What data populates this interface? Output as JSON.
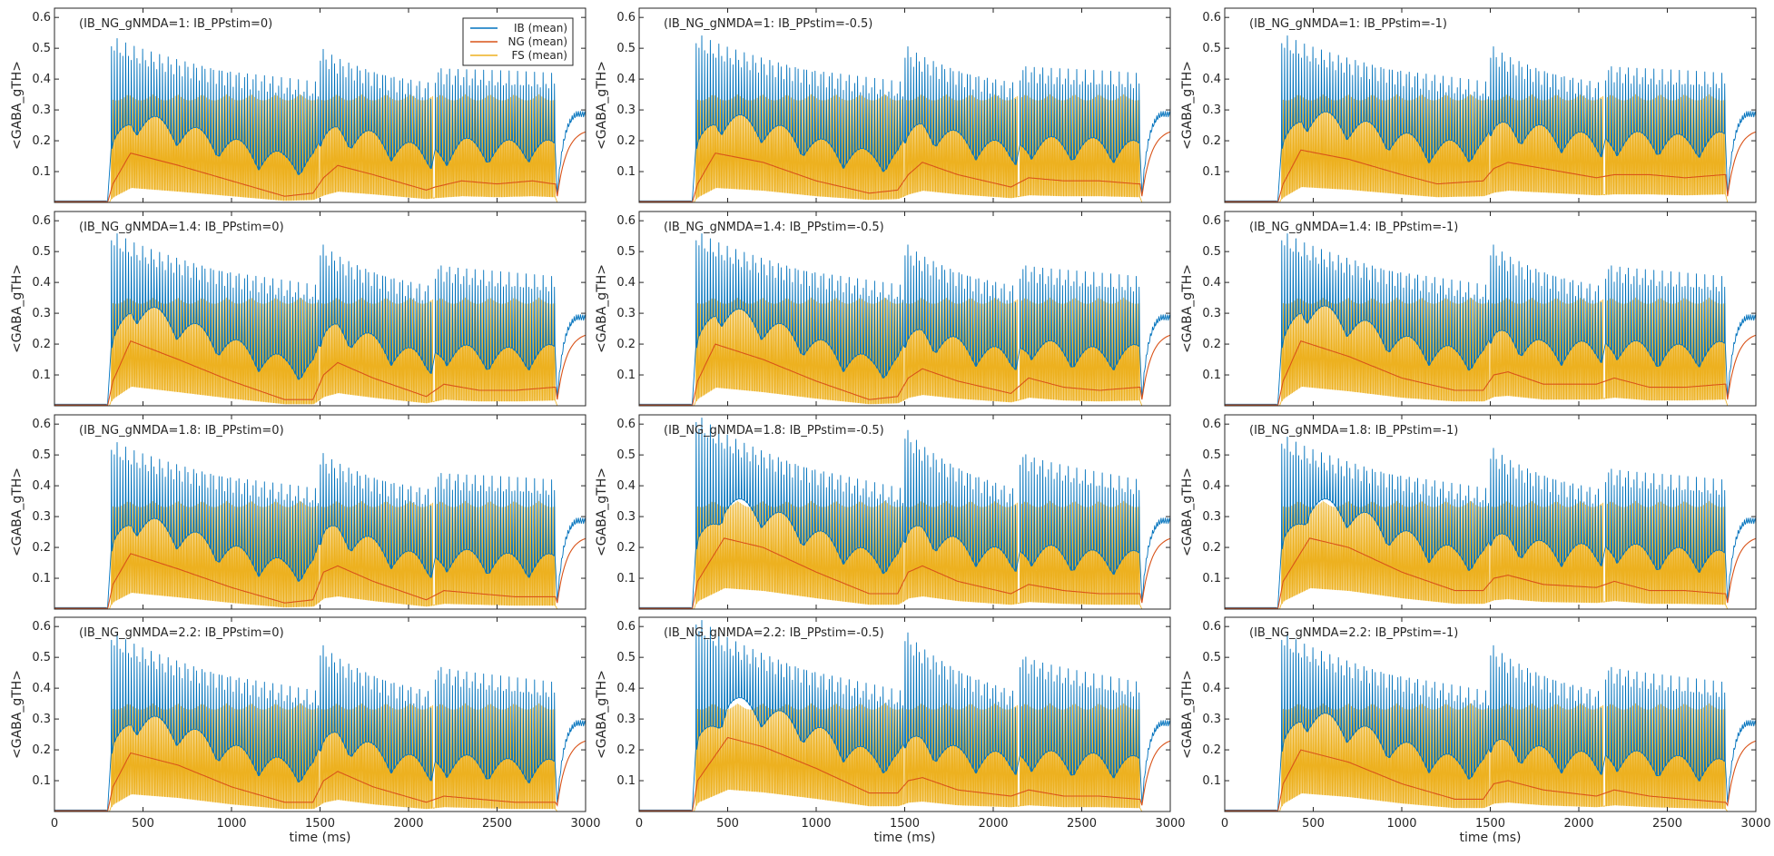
{
  "chart_data": {
    "type": "line",
    "layout": "4x3 grid of subplots",
    "ylabel": "<GABA_gTH>",
    "xlabel": "time (ms)",
    "xlim": [
      0,
      3000
    ],
    "ylim": [
      0,
      0.63
    ],
    "xticks": [
      0,
      500,
      1000,
      1500,
      2000,
      2500,
      3000
    ],
    "yticks": [
      0.1,
      0.2,
      0.3,
      0.4,
      0.5,
      0.6
    ],
    "grid": false,
    "legend": {
      "placement": "top-right of first subplot",
      "entries": [
        {
          "name": "IB (mean)",
          "color": "#0072BD"
        },
        {
          "name": "NG (mean)",
          "color": "#D95319"
        },
        {
          "name": "FS (mean)",
          "color": "#EDB120"
        }
      ]
    },
    "burst_periods_ms": [
      [
        320,
        1490
      ],
      [
        1500,
        2140
      ],
      [
        2150,
        2830
      ]
    ],
    "fs_spike_peak": 0.35,
    "end_rise": {
      "start_ms": 2840,
      "ib_plateau": 0.3,
      "ng_plateau": 0.24
    },
    "panels": [
      {
        "title": "(IB_NG_gNMDA=1: IB_PPstim=0)",
        "ib_peak": 0.52,
        "ng_points": [
          [
            300,
            0
          ],
          [
            330,
            0.06
          ],
          [
            430,
            0.16
          ],
          [
            700,
            0.12
          ],
          [
            1000,
            0.07
          ],
          [
            1300,
            0.02
          ],
          [
            1460,
            0.03
          ],
          [
            1520,
            0.08
          ],
          [
            1600,
            0.12
          ],
          [
            1800,
            0.09
          ],
          [
            2100,
            0.04
          ],
          [
            2150,
            0.05
          ],
          [
            2300,
            0.07
          ],
          [
            2500,
            0.06
          ],
          [
            2700,
            0.07
          ],
          [
            2820,
            0.06
          ]
        ]
      },
      {
        "title": "(IB_NG_gNMDA=1: IB_PPstim=-0.5)",
        "ib_peak": 0.53,
        "ng_points": [
          [
            300,
            0
          ],
          [
            330,
            0.06
          ],
          [
            430,
            0.16
          ],
          [
            700,
            0.13
          ],
          [
            1000,
            0.07
          ],
          [
            1300,
            0.03
          ],
          [
            1460,
            0.04
          ],
          [
            1520,
            0.09
          ],
          [
            1600,
            0.13
          ],
          [
            1800,
            0.09
          ],
          [
            2100,
            0.05
          ],
          [
            2200,
            0.08
          ],
          [
            2400,
            0.07
          ],
          [
            2600,
            0.07
          ],
          [
            2820,
            0.06
          ]
        ]
      },
      {
        "title": "(IB_NG_gNMDA=1: IB_PPstim=-1)",
        "ib_peak": 0.53,
        "ng_points": [
          [
            300,
            0
          ],
          [
            330,
            0.06
          ],
          [
            430,
            0.17
          ],
          [
            700,
            0.14
          ],
          [
            1000,
            0.09
          ],
          [
            1200,
            0.06
          ],
          [
            1460,
            0.07
          ],
          [
            1520,
            0.11
          ],
          [
            1600,
            0.13
          ],
          [
            1800,
            0.11
          ],
          [
            2100,
            0.08
          ],
          [
            2200,
            0.09
          ],
          [
            2400,
            0.09
          ],
          [
            2600,
            0.08
          ],
          [
            2820,
            0.09
          ]
        ]
      },
      {
        "title": "(IB_NG_gNMDA=1.4: IB_PPstim=0)",
        "ib_peak": 0.55,
        "ng_points": [
          [
            300,
            0
          ],
          [
            330,
            0.08
          ],
          [
            430,
            0.21
          ],
          [
            700,
            0.15
          ],
          [
            1000,
            0.08
          ],
          [
            1300,
            0.02
          ],
          [
            1460,
            0.02
          ],
          [
            1520,
            0.1
          ],
          [
            1600,
            0.14
          ],
          [
            1800,
            0.09
          ],
          [
            2100,
            0.03
          ],
          [
            2200,
            0.07
          ],
          [
            2400,
            0.05
          ],
          [
            2600,
            0.05
          ],
          [
            2820,
            0.06
          ]
        ]
      },
      {
        "title": "(IB_NG_gNMDA=1.4: IB_PPstim=-0.5)",
        "ib_peak": 0.55,
        "ng_points": [
          [
            300,
            0
          ],
          [
            330,
            0.08
          ],
          [
            430,
            0.2
          ],
          [
            700,
            0.15
          ],
          [
            1000,
            0.08
          ],
          [
            1300,
            0.02
          ],
          [
            1460,
            0.03
          ],
          [
            1520,
            0.09
          ],
          [
            1600,
            0.12
          ],
          [
            1800,
            0.08
          ],
          [
            2100,
            0.04
          ],
          [
            2200,
            0.09
          ],
          [
            2400,
            0.06
          ],
          [
            2600,
            0.05
          ],
          [
            2820,
            0.06
          ]
        ]
      },
      {
        "title": "(IB_NG_gNMDA=1.4: IB_PPstim=-1)",
        "ib_peak": 0.55,
        "ng_points": [
          [
            300,
            0
          ],
          [
            330,
            0.08
          ],
          [
            430,
            0.21
          ],
          [
            700,
            0.16
          ],
          [
            1000,
            0.09
          ],
          [
            1300,
            0.05
          ],
          [
            1460,
            0.05
          ],
          [
            1520,
            0.1
          ],
          [
            1600,
            0.11
          ],
          [
            1800,
            0.07
          ],
          [
            2100,
            0.07
          ],
          [
            2200,
            0.09
          ],
          [
            2400,
            0.06
          ],
          [
            2600,
            0.06
          ],
          [
            2820,
            0.07
          ]
        ]
      },
      {
        "title": "(IB_NG_gNMDA=1.8: IB_PPstim=0)",
        "ib_peak": 0.53,
        "ng_points": [
          [
            300,
            0
          ],
          [
            330,
            0.08
          ],
          [
            430,
            0.18
          ],
          [
            700,
            0.13
          ],
          [
            1000,
            0.07
          ],
          [
            1300,
            0.02
          ],
          [
            1460,
            0.03
          ],
          [
            1520,
            0.12
          ],
          [
            1600,
            0.14
          ],
          [
            1800,
            0.09
          ],
          [
            2100,
            0.03
          ],
          [
            2200,
            0.06
          ],
          [
            2400,
            0.05
          ],
          [
            2600,
            0.04
          ],
          [
            2820,
            0.04
          ]
        ]
      },
      {
        "title": "(IB_NG_gNMDA=1.8: IB_PPstim=-0.5)",
        "ib_peak": 0.62,
        "ng_points": [
          [
            300,
            0
          ],
          [
            330,
            0.09
          ],
          [
            480,
            0.23
          ],
          [
            700,
            0.2
          ],
          [
            1000,
            0.12
          ],
          [
            1300,
            0.05
          ],
          [
            1460,
            0.05
          ],
          [
            1520,
            0.12
          ],
          [
            1600,
            0.14
          ],
          [
            1800,
            0.09
          ],
          [
            2100,
            0.05
          ],
          [
            2200,
            0.08
          ],
          [
            2400,
            0.06
          ],
          [
            2600,
            0.05
          ],
          [
            2820,
            0.05
          ]
        ]
      },
      {
        "title": "(IB_NG_gNMDA=1.8: IB_PPstim=-1)",
        "ib_peak": 0.55,
        "ng_points": [
          [
            300,
            0
          ],
          [
            330,
            0.09
          ],
          [
            480,
            0.23
          ],
          [
            700,
            0.2
          ],
          [
            1000,
            0.12
          ],
          [
            1300,
            0.06
          ],
          [
            1460,
            0.06
          ],
          [
            1520,
            0.1
          ],
          [
            1600,
            0.11
          ],
          [
            1800,
            0.08
          ],
          [
            2100,
            0.07
          ],
          [
            2200,
            0.09
          ],
          [
            2400,
            0.06
          ],
          [
            2600,
            0.06
          ],
          [
            2820,
            0.05
          ]
        ]
      },
      {
        "title": "(IB_NG_gNMDA=2.2: IB_PPstim=0)",
        "ib_peak": 0.57,
        "ng_points": [
          [
            300,
            0
          ],
          [
            330,
            0.08
          ],
          [
            430,
            0.19
          ],
          [
            700,
            0.15
          ],
          [
            1000,
            0.08
          ],
          [
            1300,
            0.03
          ],
          [
            1460,
            0.03
          ],
          [
            1520,
            0.1
          ],
          [
            1600,
            0.13
          ],
          [
            1800,
            0.08
          ],
          [
            2100,
            0.03
          ],
          [
            2200,
            0.05
          ],
          [
            2400,
            0.04
          ],
          [
            2600,
            0.03
          ],
          [
            2820,
            0.03
          ]
        ]
      },
      {
        "title": "(IB_NG_gNMDA=2.2: IB_PPstim=-0.5)",
        "ib_peak": 0.62,
        "ng_points": [
          [
            300,
            0
          ],
          [
            330,
            0.1
          ],
          [
            500,
            0.24
          ],
          [
            700,
            0.21
          ],
          [
            1000,
            0.14
          ],
          [
            1300,
            0.06
          ],
          [
            1460,
            0.06
          ],
          [
            1520,
            0.1
          ],
          [
            1600,
            0.11
          ],
          [
            1800,
            0.07
          ],
          [
            2100,
            0.05
          ],
          [
            2200,
            0.07
          ],
          [
            2400,
            0.05
          ],
          [
            2600,
            0.05
          ],
          [
            2820,
            0.04
          ]
        ]
      },
      {
        "title": "(IB_NG_gNMDA=2.2: IB_PPstim=-1)",
        "ib_peak": 0.57,
        "ng_points": [
          [
            300,
            0
          ],
          [
            330,
            0.09
          ],
          [
            430,
            0.2
          ],
          [
            700,
            0.16
          ],
          [
            1000,
            0.09
          ],
          [
            1300,
            0.04
          ],
          [
            1460,
            0.04
          ],
          [
            1520,
            0.09
          ],
          [
            1600,
            0.1
          ],
          [
            1800,
            0.07
          ],
          [
            2100,
            0.05
          ],
          [
            2200,
            0.07
          ],
          [
            2400,
            0.05
          ],
          [
            2600,
            0.04
          ],
          [
            2820,
            0.03
          ]
        ]
      }
    ]
  }
}
